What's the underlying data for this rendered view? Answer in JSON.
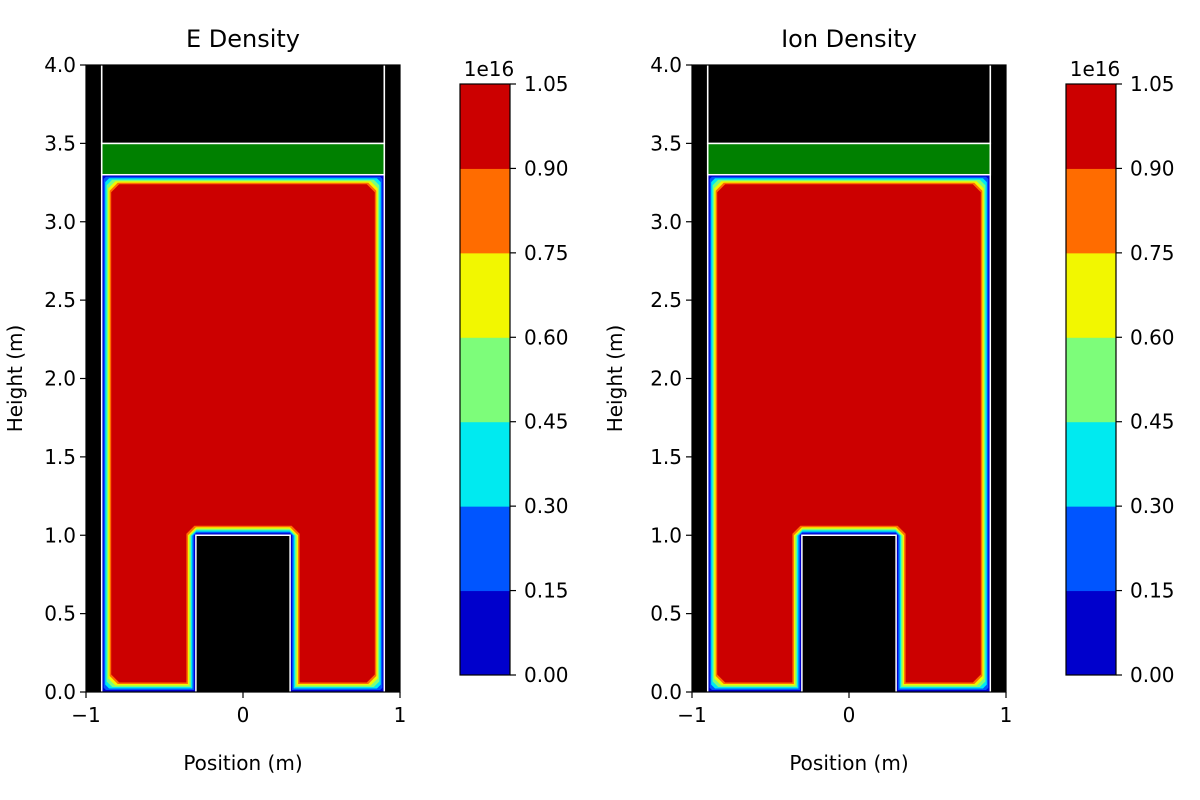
{
  "chart_data": [
    {
      "type": "heatmap",
      "title": "E Density",
      "xlabel": "Position (m)",
      "ylabel": "Height (m)",
      "xlim": [
        -1,
        1
      ],
      "ylim": [
        0,
        4
      ],
      "xticks": [
        "−1",
        "0",
        "1"
      ],
      "yticks": [
        "0.0",
        "0.5",
        "1.0",
        "1.5",
        "2.0",
        "2.5",
        "3.0",
        "3.5",
        "4.0"
      ],
      "regions": [
        {
          "name": "plasma",
          "level": 1.0,
          "x": [
            -0.9,
            0.9
          ],
          "y": [
            0.0,
            3.3
          ]
        },
        {
          "name": "green-layer",
          "x": [
            -0.9,
            0.9
          ],
          "y": [
            3.3,
            3.5
          ],
          "color": "#008000"
        },
        {
          "name": "top-block",
          "x": [
            -0.9,
            0.9
          ],
          "y": [
            3.5,
            4.0
          ],
          "color": "#000000"
        },
        {
          "name": "inner-block",
          "x": [
            -0.3,
            0.3
          ],
          "y": [
            0.0,
            1.0
          ],
          "color": "#000000"
        }
      ],
      "colorbar": {
        "multiplier": "1e16",
        "min": 0.0,
        "max": 1.05,
        "ticks": [
          "0.00",
          "0.15",
          "0.30",
          "0.45",
          "0.60",
          "0.75",
          "0.90",
          "1.05"
        ],
        "colors": [
          "#0000cc",
          "#0055ff",
          "#00eaf0",
          "#7dfd7a",
          "#f2f700",
          "#ff6c00",
          "#cc0000"
        ]
      }
    },
    {
      "type": "heatmap",
      "title": "Ion Density",
      "xlabel": "Position (m)",
      "ylabel": "Height (m)",
      "xlim": [
        -1,
        1
      ],
      "ylim": [
        0,
        4
      ],
      "xticks": [
        "−1",
        "0",
        "1"
      ],
      "yticks": [
        "0.0",
        "0.5",
        "1.0",
        "1.5",
        "2.0",
        "2.5",
        "3.0",
        "3.5",
        "4.0"
      ],
      "regions": [
        {
          "name": "plasma",
          "level": 1.0,
          "x": [
            -0.9,
            0.9
          ],
          "y": [
            0.0,
            3.3
          ]
        },
        {
          "name": "green-layer",
          "x": [
            -0.9,
            0.9
          ],
          "y": [
            3.3,
            3.5
          ],
          "color": "#008000"
        },
        {
          "name": "top-block",
          "x": [
            -0.9,
            0.9
          ],
          "y": [
            3.5,
            4.0
          ],
          "color": "#000000"
        },
        {
          "name": "inner-block",
          "x": [
            -0.3,
            0.3
          ],
          "y": [
            0.0,
            1.0
          ],
          "color": "#000000"
        }
      ],
      "colorbar": {
        "multiplier": "1e16",
        "min": 0.0,
        "max": 1.05,
        "ticks": [
          "0.00",
          "0.15",
          "0.30",
          "0.45",
          "0.60",
          "0.75",
          "0.90",
          "1.05"
        ],
        "colors": [
          "#0000cc",
          "#0055ff",
          "#00eaf0",
          "#7dfd7a",
          "#f2f700",
          "#ff6c00",
          "#cc0000"
        ]
      }
    }
  ]
}
